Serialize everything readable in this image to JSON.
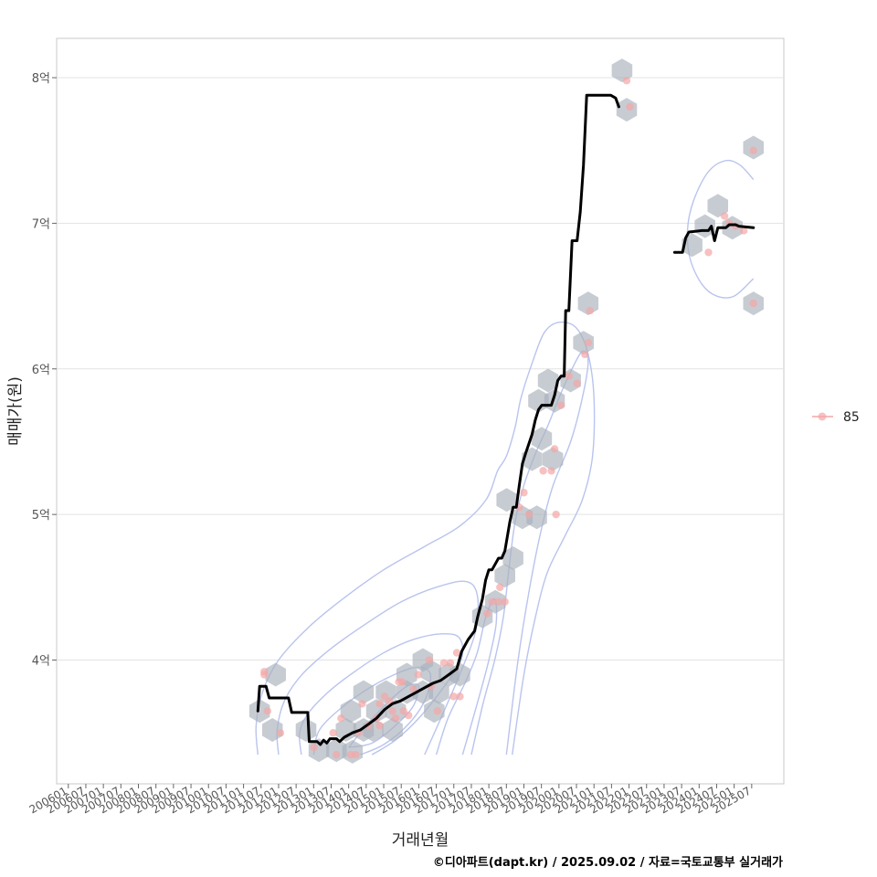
{
  "chart_data": {
    "type": "scatter",
    "xlabel": "거래년월",
    "ylabel": "매매가(원)",
    "caption": "©디아파트(dapt.kr) / 2025.09.02 / 자료=국토교통부 실거래가",
    "x_unit": "months since 2006-01",
    "xlim": [
      -4,
      245
    ],
    "ylim": [
      3.15,
      8.27
    ],
    "grid": true,
    "legend": {
      "position": "right",
      "entries": [
        {
          "label": "85",
          "color": "#f4a6a6"
        }
      ]
    },
    "y_ticks": [
      {
        "value": 4,
        "label": "4억"
      },
      {
        "value": 5,
        "label": "5억"
      },
      {
        "value": 6,
        "label": "6억"
      },
      {
        "value": 7,
        "label": "7억"
      },
      {
        "value": 8,
        "label": "8억"
      }
    ],
    "x_ticks": [
      {
        "value": 0,
        "label": "200601"
      },
      {
        "value": 6,
        "label": "200607"
      },
      {
        "value": 12,
        "label": "200701"
      },
      {
        "value": 18,
        "label": "200707"
      },
      {
        "value": 24,
        "label": "200801"
      },
      {
        "value": 30,
        "label": "200807"
      },
      {
        "value": 36,
        "label": "200901"
      },
      {
        "value": 42,
        "label": "200907"
      },
      {
        "value": 48,
        "label": "201001"
      },
      {
        "value": 54,
        "label": "201007"
      },
      {
        "value": 60,
        "label": "201101"
      },
      {
        "value": 66,
        "label": "201107"
      },
      {
        "value": 72,
        "label": "201201"
      },
      {
        "value": 78,
        "label": "201207"
      },
      {
        "value": 84,
        "label": "201301"
      },
      {
        "value": 90,
        "label": "201307"
      },
      {
        "value": 96,
        "label": "201401"
      },
      {
        "value": 102,
        "label": "201407"
      },
      {
        "value": 108,
        "label": "201501"
      },
      {
        "value": 114,
        "label": "201507"
      },
      {
        "value": 120,
        "label": "201601"
      },
      {
        "value": 126,
        "label": "201607"
      },
      {
        "value": 132,
        "label": "201701"
      },
      {
        "value": 138,
        "label": "201707"
      },
      {
        "value": 144,
        "label": "201801"
      },
      {
        "value": 150,
        "label": "201807"
      },
      {
        "value": 156,
        "label": "201901"
      },
      {
        "value": 162,
        "label": "201907"
      },
      {
        "value": 168,
        "label": "202001"
      },
      {
        "value": 174,
        "label": "202007"
      },
      {
        "value": 180,
        "label": "202101"
      },
      {
        "value": 186,
        "label": "202107"
      },
      {
        "value": 192,
        "label": "202201"
      },
      {
        "value": 198,
        "label": "202207"
      },
      {
        "value": 204,
        "label": "202301"
      },
      {
        "value": 210,
        "label": "202307"
      },
      {
        "value": 216,
        "label": "202401"
      },
      {
        "value": 222,
        "label": "202407"
      },
      {
        "value": 228,
        "label": "202501"
      },
      {
        "value": 234,
        "label": "202507"
      }
    ],
    "points": [
      [
        67.1,
        3.92
      ],
      [
        67.1,
        3.9
      ],
      [
        68.2,
        3.65
      ],
      [
        72.6,
        3.5
      ],
      [
        84.1,
        3.4
      ],
      [
        90.7,
        3.5
      ],
      [
        93.4,
        3.6
      ],
      [
        91.8,
        3.35
      ],
      [
        96.7,
        3.35
      ],
      [
        98.4,
        3.35
      ],
      [
        100.6,
        3.7
      ],
      [
        99.5,
        3.5
      ],
      [
        102.8,
        3.55
      ],
      [
        105.5,
        3.6
      ],
      [
        106.6,
        3.7
      ],
      [
        106.6,
        3.55
      ],
      [
        108.3,
        3.75
      ],
      [
        109.9,
        3.72
      ],
      [
        111.0,
        3.65
      ],
      [
        112.1,
        3.6
      ],
      [
        113.2,
        3.85
      ],
      [
        114.3,
        3.85
      ],
      [
        114.8,
        3.65
      ],
      [
        116.5,
        3.62
      ],
      [
        119.8,
        3.9
      ],
      [
        118.1,
        3.8
      ],
      [
        123.6,
        4.0
      ],
      [
        124.2,
        3.82
      ],
      [
        126.4,
        3.65
      ],
      [
        128.6,
        3.98
      ],
      [
        130.8,
        3.98
      ],
      [
        131.9,
        3.75
      ],
      [
        133.0,
        4.05
      ],
      [
        134.1,
        3.75
      ],
      [
        145.1,
        4.4
      ],
      [
        147.3,
        4.4
      ],
      [
        147.8,
        4.5
      ],
      [
        149.5,
        4.4
      ],
      [
        143.4,
        4.32
      ],
      [
        154.4,
        5.05
      ],
      [
        156.0,
        5.15
      ],
      [
        157.7,
        5.0
      ],
      [
        162.6,
        5.3
      ],
      [
        165.4,
        5.3
      ],
      [
        166.5,
        5.45
      ],
      [
        167.0,
        5.0
      ],
      [
        168.7,
        5.75
      ],
      [
        171.4,
        5.95
      ],
      [
        174.2,
        5.9
      ],
      [
        176.9,
        6.1
      ],
      [
        178.0,
        6.18
      ],
      [
        178.6,
        6.4
      ],
      [
        191.2,
        7.98
      ],
      [
        192.3,
        7.8
      ],
      [
        219.2,
        6.8
      ],
      [
        224.7,
        7.05
      ],
      [
        226.3,
        7.0
      ],
      [
        228.5,
        6.98
      ],
      [
        231.3,
        6.95
      ],
      [
        234.6,
        7.5
      ],
      [
        234.6,
        6.45
      ]
    ],
    "trend_line": [
      [
        64.9,
        3.65
      ],
      [
        65.5,
        3.82
      ],
      [
        67.7,
        3.82
      ],
      [
        68.8,
        3.74
      ],
      [
        75.4,
        3.74
      ],
      [
        76.5,
        3.64
      ],
      [
        82.0,
        3.64
      ],
      [
        82.5,
        3.44
      ],
      [
        85.2,
        3.44
      ],
      [
        86.3,
        3.42
      ],
      [
        87.4,
        3.45
      ],
      [
        88.5,
        3.43
      ],
      [
        89.6,
        3.46
      ],
      [
        91.8,
        3.46
      ],
      [
        92.9,
        3.44
      ],
      [
        94.5,
        3.47
      ],
      [
        97.3,
        3.5
      ],
      [
        100.0,
        3.52
      ],
      [
        102.8,
        3.56
      ],
      [
        105.5,
        3.6
      ],
      [
        108.3,
        3.66
      ],
      [
        111.0,
        3.7
      ],
      [
        113.8,
        3.72
      ],
      [
        116.5,
        3.75
      ],
      [
        119.3,
        3.78
      ],
      [
        122.0,
        3.81
      ],
      [
        124.8,
        3.84
      ],
      [
        127.5,
        3.86
      ],
      [
        130.3,
        3.9
      ],
      [
        133.0,
        3.94
      ],
      [
        134.7,
        4.06
      ],
      [
        136.9,
        4.14
      ],
      [
        139.1,
        4.2
      ],
      [
        140.2,
        4.3
      ],
      [
        141.8,
        4.42
      ],
      [
        142.9,
        4.55
      ],
      [
        144.0,
        4.62
      ],
      [
        145.1,
        4.62
      ],
      [
        146.2,
        4.66
      ],
      [
        147.3,
        4.7
      ],
      [
        148.4,
        4.7
      ],
      [
        149.5,
        4.75
      ],
      [
        151.2,
        4.95
      ],
      [
        152.3,
        5.05
      ],
      [
        153.4,
        5.05
      ],
      [
        154.4,
        5.2
      ],
      [
        155.5,
        5.35
      ],
      [
        156.6,
        5.42
      ],
      [
        158.8,
        5.55
      ],
      [
        159.9,
        5.65
      ],
      [
        161.0,
        5.72
      ],
      [
        162.1,
        5.75
      ],
      [
        165.4,
        5.75
      ],
      [
        166.5,
        5.82
      ],
      [
        167.6,
        5.92
      ],
      [
        168.7,
        5.95
      ],
      [
        169.8,
        5.95
      ],
      [
        170.3,
        6.4
      ],
      [
        171.4,
        6.4
      ],
      [
        172.5,
        6.88
      ],
      [
        174.2,
        6.88
      ],
      [
        175.3,
        7.08
      ],
      [
        176.4,
        7.4
      ],
      [
        177.5,
        7.88
      ],
      [
        179.7,
        7.88
      ],
      [
        183.0,
        7.88
      ],
      [
        185.7,
        7.88
      ],
      [
        187.4,
        7.86
      ],
      [
        188.5,
        7.8
      ]
    ],
    "trend_line_2": [
      [
        207.6,
        6.8
      ],
      [
        210.3,
        6.8
      ],
      [
        211.4,
        6.9
      ],
      [
        212.5,
        6.94
      ],
      [
        216.9,
        6.95
      ],
      [
        219.2,
        6.95
      ],
      [
        220.2,
        6.98
      ],
      [
        221.3,
        6.88
      ],
      [
        222.4,
        6.97
      ],
      [
        225.2,
        6.97
      ],
      [
        226.3,
        6.99
      ],
      [
        228.5,
        6.99
      ],
      [
        229.6,
        6.98
      ],
      [
        234.6,
        6.97
      ]
    ],
    "hexbins": [
      [
        71.0,
        3.9
      ],
      [
        65.5,
        3.65
      ],
      [
        69.9,
        3.52
      ],
      [
        81.4,
        3.52
      ],
      [
        85.8,
        3.38
      ],
      [
        91.8,
        3.38
      ],
      [
        95.1,
        3.52
      ],
      [
        97.3,
        3.37
      ],
      [
        96.7,
        3.65
      ],
      [
        101.1,
        3.78
      ],
      [
        101.1,
        3.52
      ],
      [
        104.4,
        3.52
      ],
      [
        105.5,
        3.65
      ],
      [
        111.0,
        3.52
      ],
      [
        108.8,
        3.78
      ],
      [
        112.1,
        3.65
      ],
      [
        115.9,
        3.78
      ],
      [
        115.9,
        3.9
      ],
      [
        121.4,
        3.78
      ],
      [
        121.4,
        4.0
      ],
      [
        124.2,
        3.92
      ],
      [
        125.3,
        3.65
      ],
      [
        126.9,
        3.78
      ],
      [
        130.3,
        3.9
      ],
      [
        134.1,
        3.9
      ],
      [
        141.8,
        4.3
      ],
      [
        146.2,
        4.4
      ],
      [
        149.5,
        4.58
      ],
      [
        152.3,
        4.7
      ],
      [
        150.1,
        5.1
      ],
      [
        155.5,
        4.98
      ],
      [
        160.4,
        4.98
      ],
      [
        158.8,
        5.38
      ],
      [
        162.1,
        5.52
      ],
      [
        161.0,
        5.78
      ],
      [
        164.3,
        5.92
      ],
      [
        165.9,
        5.38
      ],
      [
        166.5,
        5.78
      ],
      [
        172.0,
        5.92
      ],
      [
        176.4,
        6.18
      ],
      [
        178.0,
        6.45
      ],
      [
        189.6,
        8.05
      ],
      [
        191.2,
        7.78
      ],
      [
        213.6,
        6.85
      ],
      [
        218.0,
        6.98
      ],
      [
        222.4,
        7.12
      ],
      [
        227.4,
        6.97
      ],
      [
        234.6,
        7.52
      ],
      [
        234.6,
        6.45
      ]
    ],
    "contours": [
      {
        "path": [
          [
            79.8,
            3.35
          ],
          [
            79.2,
            3.5
          ],
          [
            82.0,
            3.63
          ],
          [
            89.0,
            3.78
          ],
          [
            98.0,
            3.92
          ],
          [
            108.0,
            4.05
          ],
          [
            118.0,
            4.14
          ],
          [
            128.0,
            4.18
          ],
          [
            134.0,
            4.15
          ],
          [
            134.5,
            4.0
          ],
          [
            128.0,
            3.8
          ],
          [
            120.0,
            3.6
          ],
          [
            112.0,
            3.45
          ],
          [
            104.0,
            3.35
          ]
        ]
      },
      {
        "path": [
          [
            72.0,
            3.35
          ],
          [
            71.5,
            3.52
          ],
          [
            74.0,
            3.72
          ],
          [
            80.0,
            3.9
          ],
          [
            90.0,
            4.08
          ],
          [
            102.0,
            4.25
          ],
          [
            114.0,
            4.4
          ],
          [
            126.0,
            4.5
          ],
          [
            136.0,
            4.54
          ],
          [
            140.0,
            4.45
          ],
          [
            139.5,
            4.2
          ],
          [
            134.0,
            3.9
          ],
          [
            128.0,
            3.62
          ],
          [
            122.0,
            3.35
          ]
        ]
      },
      {
        "path": [
          [
            64.9,
            3.35
          ],
          [
            64.3,
            3.55
          ],
          [
            66.5,
            3.78
          ],
          [
            72.0,
            4.0
          ],
          [
            82.0,
            4.22
          ],
          [
            94.0,
            4.42
          ],
          [
            108.0,
            4.62
          ],
          [
            122.0,
            4.78
          ],
          [
            134.0,
            4.92
          ],
          [
            143.0,
            5.1
          ],
          [
            147.0,
            5.3
          ],
          [
            150.0,
            5.4
          ],
          [
            153.0,
            5.6
          ],
          [
            155.0,
            5.8
          ],
          [
            159.0,
            6.05
          ],
          [
            163.0,
            6.25
          ],
          [
            168.0,
            6.32
          ],
          [
            174.0,
            6.28
          ],
          [
            178.0,
            6.1
          ],
          [
            180.0,
            5.8
          ],
          [
            179.5,
            5.4
          ],
          [
            176.0,
            5.1
          ],
          [
            170.0,
            4.85
          ],
          [
            164.0,
            4.6
          ],
          [
            160.0,
            4.3
          ],
          [
            156.0,
            3.9
          ],
          [
            152.0,
            3.35
          ]
        ]
      },
      {
        "path": [
          [
            84.0,
            3.35
          ],
          [
            86.0,
            3.52
          ],
          [
            94.0,
            3.68
          ],
          [
            104.0,
            3.82
          ],
          [
            114.0,
            3.92
          ],
          [
            120.0,
            3.95
          ],
          [
            124.0,
            3.9
          ],
          [
            122.0,
            3.72
          ],
          [
            116.0,
            3.55
          ],
          [
            108.0,
            3.42
          ],
          [
            100.0,
            3.35
          ]
        ]
      },
      {
        "path": [
          [
            96.0,
            3.4
          ],
          [
            102.0,
            3.55
          ],
          [
            110.0,
            3.72
          ],
          [
            116.0,
            3.82
          ],
          [
            120.0,
            3.82
          ],
          [
            118.0,
            3.68
          ],
          [
            112.0,
            3.55
          ],
          [
            104.0,
            3.43
          ],
          [
            96.0,
            3.4
          ]
        ]
      },
      {
        "path": [
          [
            126.0,
            3.35
          ],
          [
            130.0,
            3.6
          ],
          [
            136.0,
            3.85
          ],
          [
            140.0,
            4.05
          ],
          [
            143.0,
            4.3
          ],
          [
            146.0,
            4.42
          ],
          [
            146.5,
            4.25
          ],
          [
            144.0,
            4.0
          ],
          [
            140.0,
            3.7
          ],
          [
            135.0,
            3.35
          ]
        ]
      },
      {
        "path": [
          [
            138.0,
            3.35
          ],
          [
            142.0,
            3.7
          ],
          [
            146.0,
            4.0
          ],
          [
            149.0,
            4.3
          ],
          [
            151.0,
            4.65
          ],
          [
            153.0,
            4.95
          ],
          [
            156.0,
            5.2
          ],
          [
            160.0,
            5.42
          ],
          [
            164.0,
            5.6
          ],
          [
            168.0,
            5.8
          ],
          [
            172.0,
            5.98
          ],
          [
            176.0,
            6.12
          ],
          [
            178.0,
            6.05
          ],
          [
            176.0,
            5.8
          ],
          [
            172.0,
            5.5
          ],
          [
            166.0,
            5.2
          ],
          [
            162.0,
            4.9
          ],
          [
            158.0,
            4.5
          ],
          [
            154.0,
            4.0
          ],
          [
            150.0,
            3.35
          ]
        ]
      },
      {
        "path": [
          [
            234.6,
            7.3
          ],
          [
            230.0,
            7.4
          ],
          [
            225.0,
            7.43
          ],
          [
            219.0,
            7.35
          ],
          [
            214.0,
            7.15
          ],
          [
            212.0,
            6.95
          ],
          [
            213.0,
            6.75
          ],
          [
            217.0,
            6.58
          ],
          [
            222.0,
            6.5
          ],
          [
            228.0,
            6.5
          ],
          [
            234.6,
            6.62
          ]
        ]
      }
    ]
  }
}
